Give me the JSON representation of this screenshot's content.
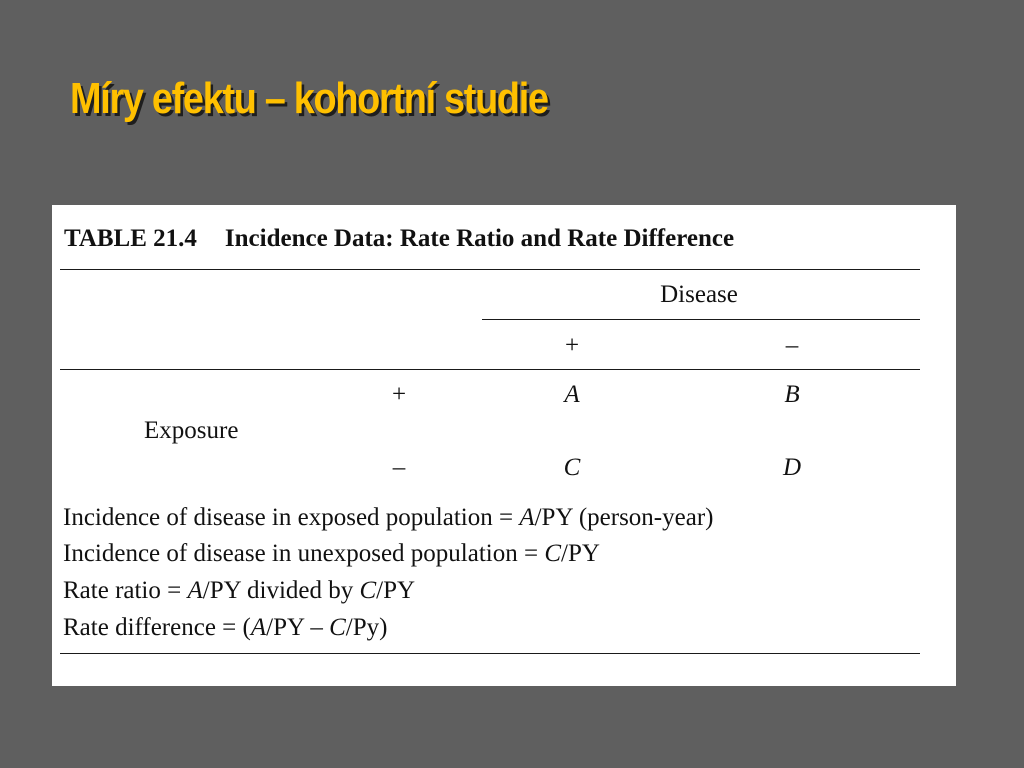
{
  "slide": {
    "title": "Míry efektu – kohortní studie"
  },
  "table": {
    "number": "TABLE 21.4",
    "caption": "Incidence Data: Rate Ratio and Rate Difference",
    "column_group_header": "Disease",
    "column_headers": [
      "+",
      "–"
    ],
    "row_group_header": "Exposure",
    "rows": [
      {
        "label": "+",
        "cells": [
          "A",
          "B"
        ]
      },
      {
        "label": "–",
        "cells": [
          "C",
          "D"
        ]
      }
    ],
    "notes": [
      {
        "pre": "Incidence of disease in exposed population = ",
        "var": "A",
        "post": "/PY (person-year)"
      },
      {
        "pre": "Incidence of disease in unexposed population = ",
        "var": "C",
        "post": "/PY"
      },
      {
        "pre": "Rate ratio = ",
        "var": "A",
        "mid": "/PY divided by ",
        "var2": "C",
        "post": "/PY"
      },
      {
        "pre": "Rate difference = (",
        "var": "A",
        "mid": "/PY – ",
        "var2": "C",
        "post": "/Py)"
      }
    ]
  }
}
